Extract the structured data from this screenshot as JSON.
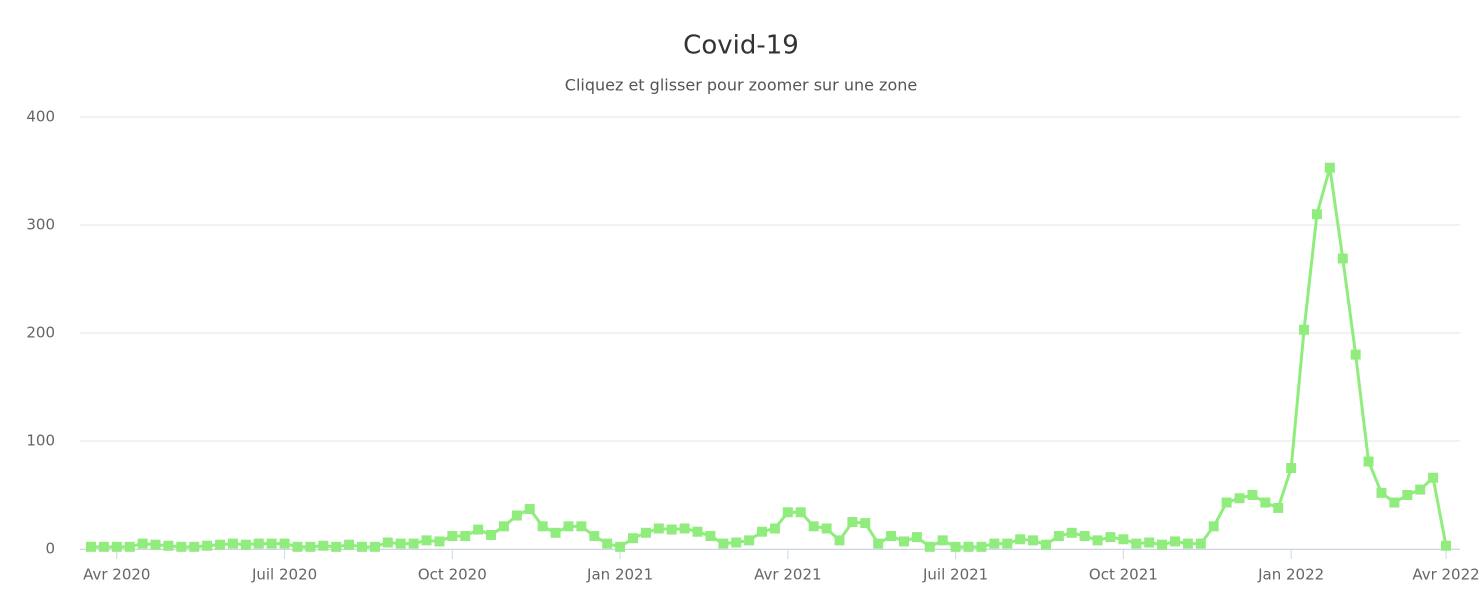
{
  "chart_data": {
    "type": "line",
    "title": "Covid-19",
    "subtitle": "Cliquez et glisser pour zoomer sur une zone",
    "categories": [
      null,
      null,
      "Avr 2020",
      null,
      null,
      null,
      null,
      null,
      null,
      null,
      null,
      null,
      null,
      null,
      null,
      "Juil 2020",
      null,
      null,
      null,
      null,
      null,
      null,
      null,
      null,
      null,
      null,
      null,
      null,
      "Oct 2020",
      null,
      null,
      null,
      null,
      null,
      null,
      null,
      null,
      null,
      null,
      null,
      null,
      "Jan 2021",
      null,
      null,
      null,
      null,
      null,
      null,
      null,
      null,
      null,
      null,
      null,
      null,
      "Avr 2021",
      null,
      null,
      null,
      null,
      null,
      null,
      null,
      null,
      null,
      null,
      null,
      null,
      "Juil 2021",
      null,
      null,
      null,
      null,
      null,
      null,
      null,
      null,
      null,
      null,
      null,
      null,
      "Oct 2021",
      null,
      null,
      null,
      null,
      null,
      null,
      null,
      null,
      null,
      null,
      null,
      null,
      "Jan 2022",
      null,
      null,
      null,
      null,
      null,
      null,
      null,
      null,
      null,
      null,
      null,
      "Avr 2022"
    ],
    "values": [
      2,
      2,
      2,
      2,
      5,
      4,
      3,
      2,
      2,
      3,
      4,
      5,
      4,
      5,
      5,
      5,
      2,
      2,
      3,
      2,
      4,
      2,
      2,
      6,
      5,
      5,
      8,
      7,
      12,
      12,
      18,
      13,
      21,
      31,
      37,
      21,
      15,
      21,
      21,
      12,
      5,
      2,
      10,
      15,
      19,
      18,
      19,
      16,
      12,
      5,
      6,
      8,
      16,
      19,
      34,
      34,
      21,
      19,
      8,
      25,
      24,
      5,
      12,
      7,
      11,
      2,
      8,
      2,
      2,
      2,
      5,
      5,
      9,
      8,
      4,
      12,
      15,
      12,
      8,
      11,
      9,
      5,
      6,
      4,
      7,
      5,
      5,
      21,
      43,
      47,
      50,
      43,
      38,
      75,
      203,
      310,
      353,
      269,
      180,
      81,
      52,
      43,
      50,
      55,
      66,
      3
    ],
    "color": "#90ed7d",
    "ylim": [
      0,
      400
    ],
    "yticks": [
      0,
      100,
      200,
      300,
      400
    ],
    "grid": true
  }
}
